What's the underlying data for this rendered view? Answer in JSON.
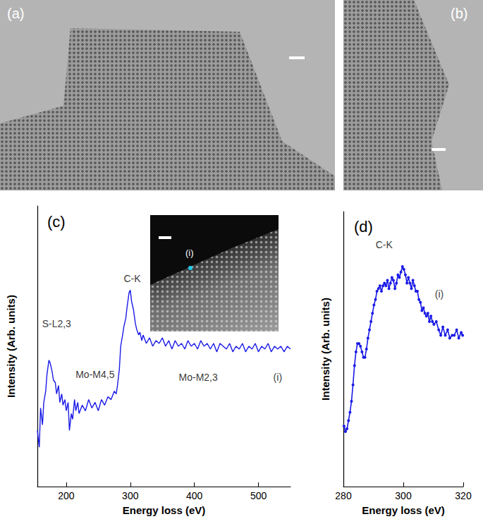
{
  "images": [
    {
      "label": "(a)"
    },
    {
      "label": "(b)"
    },
    {
      "label": "(i)"
    }
  ],
  "chart_data": [
    {
      "type": "line",
      "title": "(c)",
      "x_label": "Energy loss (eV)",
      "y_label": "Intensity (Arb. units)",
      "color": "#1a1ae6",
      "marker": "none",
      "grid": false,
      "tick_labels": "x",
      "xlim": [
        155,
        550
      ],
      "xticks": [
        200,
        300,
        400,
        500
      ],
      "ylim": [
        0,
        100
      ],
      "x": [
        155,
        158,
        160,
        163,
        165,
        168,
        170,
        173,
        175,
        178,
        180,
        183,
        185,
        188,
        190,
        193,
        195,
        198,
        200,
        203,
        205,
        208,
        210,
        213,
        215,
        218,
        220,
        225,
        230,
        235,
        240,
        245,
        250,
        255,
        260,
        265,
        270,
        275,
        278,
        280,
        283,
        285,
        288,
        290,
        293,
        295,
        298,
        300,
        302,
        305,
        308,
        310,
        313,
        315,
        318,
        320,
        325,
        330,
        335,
        340,
        345,
        350,
        355,
        360,
        365,
        370,
        375,
        380,
        385,
        390,
        395,
        400,
        405,
        410,
        415,
        420,
        425,
        430,
        435,
        440,
        445,
        450,
        455,
        460,
        465,
        470,
        475,
        480,
        485,
        490,
        495,
        500,
        505,
        510,
        515,
        520,
        525,
        530,
        535,
        540,
        545,
        550
      ],
      "values": [
        20,
        14,
        28,
        22,
        30,
        34,
        40,
        45,
        44,
        41,
        38,
        37,
        33,
        36,
        30,
        33,
        29,
        31,
        27,
        30,
        20,
        26,
        24,
        31,
        27,
        30,
        26,
        29,
        27,
        31,
        28,
        30,
        27,
        31,
        29,
        32,
        31,
        34,
        33,
        36,
        42,
        50,
        54,
        57,
        60,
        64,
        69,
        70,
        66,
        63,
        58,
        56,
        54,
        55,
        52,
        54,
        51,
        53,
        50,
        52,
        51,
        53,
        50,
        52,
        49,
        52,
        50,
        51,
        49,
        52,
        50,
        51,
        49,
        52,
        50,
        51,
        49,
        51,
        48,
        51,
        50,
        49,
        51,
        48,
        50,
        49,
        51,
        48,
        50,
        49,
        51,
        48,
        50,
        49,
        51,
        48,
        50,
        49,
        50,
        48,
        50,
        49
      ],
      "annotations": [
        {
          "text": "S-L2,3",
          "x": 185,
          "y": 58
        },
        {
          "text": "Mo-M4,5",
          "x": 245,
          "y": 40
        },
        {
          "text": "C-K",
          "x": 303,
          "y": 74
        },
        {
          "text": "Mo-M2,3",
          "x": 406,
          "y": 39
        },
        {
          "text": "(i)",
          "x": 530,
          "y": 39
        }
      ]
    },
    {
      "type": "line",
      "title": "(d)",
      "x_label": "Energy loss (eV)",
      "y_label": "Intensity (Arb. units)",
      "color": "#1a1ae6",
      "marker": "circle",
      "grid": false,
      "tick_labels": "x",
      "xlim": [
        280,
        320
      ],
      "xticks": [
        280,
        300,
        320
      ],
      "ylim": [
        0,
        100
      ],
      "x": [
        280.2,
        280.7,
        281.2,
        281.7,
        282.2,
        282.7,
        283.2,
        283.7,
        284.2,
        284.7,
        285.2,
        285.7,
        286.2,
        286.7,
        287.2,
        287.7,
        288.2,
        288.7,
        289.2,
        289.7,
        290.2,
        290.7,
        291.2,
        291.7,
        292.2,
        292.7,
        293.2,
        293.7,
        294.2,
        294.7,
        295.2,
        295.7,
        296.2,
        296.7,
        297.2,
        297.7,
        298.2,
        298.7,
        299.2,
        299.7,
        300.2,
        300.7,
        301.2,
        301.7,
        302.2,
        302.7,
        303.2,
        303.7,
        304.2,
        304.7,
        305.2,
        305.7,
        306.2,
        306.7,
        307.2,
        307.7,
        308.2,
        308.7,
        309.2,
        309.7,
        310.2,
        311.0,
        311.8,
        312.5,
        313.2,
        314.0,
        314.8,
        315.5,
        316.3,
        317.0,
        317.8,
        318.5,
        319.3,
        319.8
      ],
      "values": [
        22,
        20,
        21,
        24,
        27,
        31,
        37,
        44,
        49,
        52,
        52,
        51,
        49,
        47,
        47,
        50,
        54,
        57,
        60,
        63,
        66,
        68,
        71,
        72,
        73,
        71,
        73,
        74,
        73,
        75,
        72,
        74,
        76,
        75,
        72,
        74,
        77,
        76,
        78,
        80,
        79,
        77,
        74,
        76,
        74,
        72,
        75,
        73,
        71,
        71,
        68,
        67,
        64,
        65,
        63,
        62,
        63,
        60,
        62,
        60,
        59,
        60,
        57,
        55,
        58,
        55,
        57,
        54,
        55,
        55,
        57,
        54,
        56,
        55
      ],
      "annotations": [
        {
          "text": "C-K",
          "x": 293.6,
          "y": 88
        },
        {
          "text": "(i)",
          "x": 312,
          "y": 70
        }
      ]
    }
  ]
}
